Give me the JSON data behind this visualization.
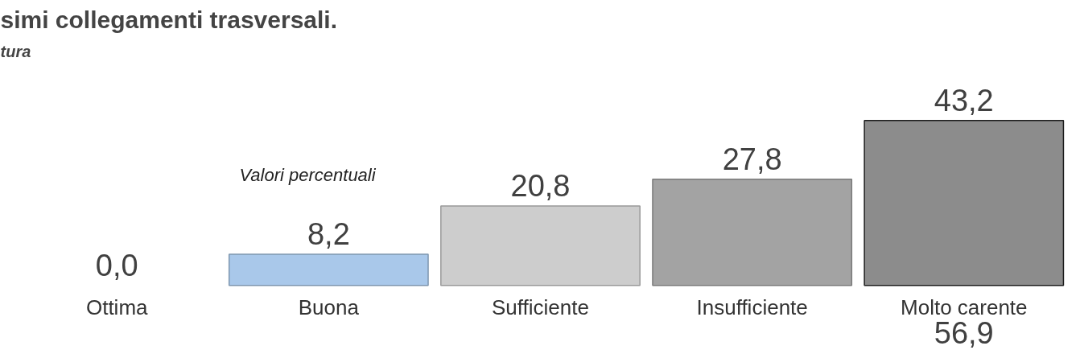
{
  "chart_data": {
    "type": "bar",
    "title": "simi collegamenti trasversali.",
    "subtitle": "tura",
    "categories": [
      "Ottima",
      "Buona",
      "Sufficiente",
      "Insufficiente",
      "Molto carente"
    ],
    "values": [
      0.0,
      8.2,
      20.8,
      27.8,
      43.2
    ],
    "colors": [
      "#a9c8ea",
      "#a9c8ea",
      "#cdcdcd",
      "#a3a3a3",
      "#8c8c8c"
    ],
    "value_labels": [
      "0,0",
      "8,2",
      "20,8",
      "27,8",
      "43,2"
    ],
    "annotations": [
      "Valori percentuali",
      "56,9"
    ]
  }
}
